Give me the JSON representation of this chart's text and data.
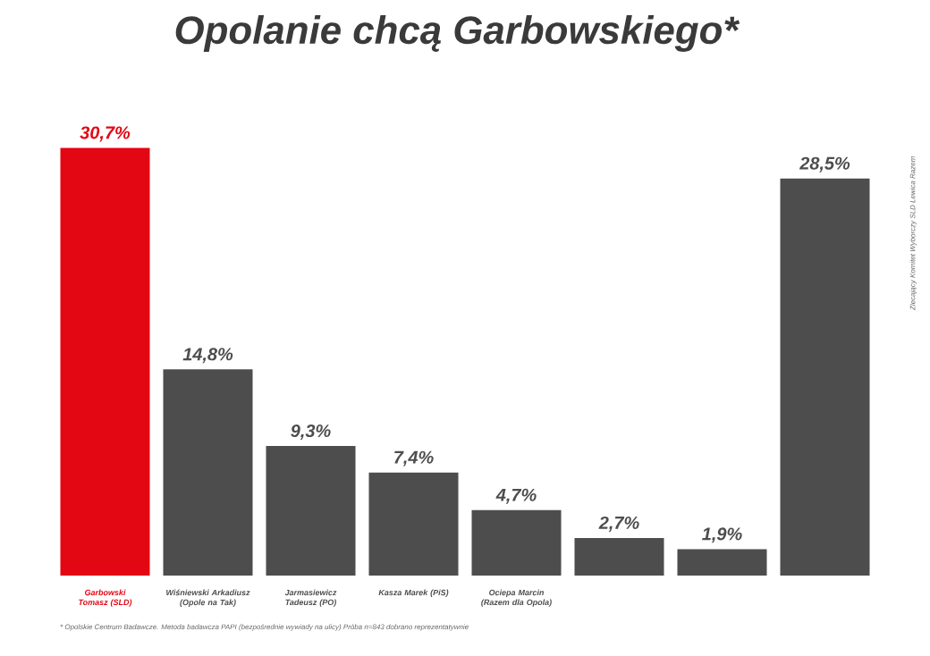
{
  "chart_data": {
    "type": "bar",
    "title": "Opolanie chcą Garbowskiego*",
    "categories": [
      "Garbowski Tomasz (SLD)",
      "Wiśniewski Arkadiusz (Opole na Tak)",
      "Jarmasiewicz Tadeusz (PO)",
      "Kasza Marek (PiS)",
      "Ociepa Marcin (Razem dla Opola)",
      null,
      null,
      null
    ],
    "values": [
      30.7,
      14.8,
      9.3,
      7.4,
      4.7,
      2.7,
      1.9,
      28.5
    ],
    "colors": [
      "#e30613",
      "#4d4d4d",
      "#4d4d4d",
      "#4d4d4d",
      "#4d4d4d",
      "#4d4d4d",
      "#4d4d4d",
      "#4d4d4d"
    ],
    "value_labels": [
      "30,7%",
      "14,8%",
      "9,3%",
      "7,4%",
      "4,7%",
      "2,7%",
      "1,9%",
      "28,5%"
    ],
    "annotations": [
      "* Opolskie Centrum Badawcze. Metoda badawcza PAPI (bezpośrednie wywiady na ulicy) Próba n=843 dobrano reprezentatywnie",
      "Zlecający Komitet Wyborczy SLD Lewica Razem"
    ]
  }
}
